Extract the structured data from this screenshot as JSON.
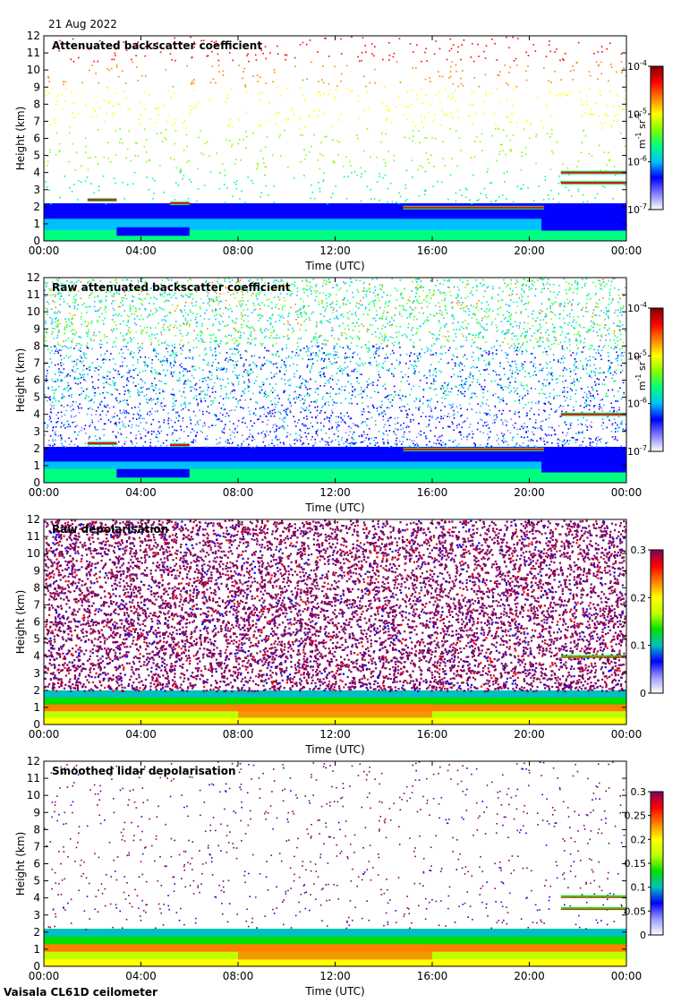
{
  "date": "21 Aug 2022",
  "footer": "Vaisala CL61D ceilometer",
  "colors": {
    "rainbow": [
      "#ffffff",
      "#8080ff",
      "#0000ff",
      "#00c0ff",
      "#00ff80",
      "#80ff00",
      "#ffff00",
      "#ff8000",
      "#ff0000",
      "#800000"
    ],
    "depol": [
      "#ffffff",
      "#9999ff",
      "#0000ff",
      "#00c0c0",
      "#00e000",
      "#c0ff00",
      "#ffff00",
      "#ff8000",
      "#ff0000",
      "#800060"
    ]
  },
  "chart_data": [
    {
      "type": "heatmap",
      "title": "Attenuated backscatter coefficient",
      "xlabel": "Time (UTC)",
      "ylabel": "Height (km)",
      "x_ticks": [
        "00:00",
        "04:00",
        "08:00",
        "12:00",
        "16:00",
        "20:00",
        "00:00"
      ],
      "y_ticks": [
        "0",
        "1",
        "2",
        "3",
        "4",
        "5",
        "6",
        "7",
        "8",
        "9",
        "10",
        "11",
        "12"
      ],
      "ylim": [
        0,
        12
      ],
      "colorbar": {
        "scale": "log",
        "range": [
          1e-07,
          0.0001
        ],
        "ticks": [
          {
            "base": "10",
            "exp": "-4"
          },
          {
            "base": "10",
            "exp": "-5"
          },
          {
            "base": "10",
            "exp": "-6"
          },
          {
            "base": "10",
            "exp": "-7"
          }
        ],
        "units": {
          "main1": "m",
          "exp1": "-1",
          "main2": " sr",
          "exp2": "-1"
        }
      },
      "features": {
        "boundary_layer_top_km": 2.2,
        "cloud_layers": [
          {
            "from_h": 1.8,
            "to_h": 3.0,
            "height_km": 2.4
          },
          {
            "from_h": 5.2,
            "to_h": 6.0,
            "height_km": 2.2
          },
          {
            "from_h": 14.8,
            "to_h": 20.6,
            "height_km": 1.95
          },
          {
            "from_h": 21.3,
            "to_h": 24.0,
            "height_km": 4.0
          },
          {
            "from_h": 21.3,
            "to_h": 24.0,
            "height_km": 3.4
          }
        ]
      }
    },
    {
      "type": "heatmap",
      "title": "Raw attenuated backscatter coefficient",
      "xlabel": "Time (UTC)",
      "ylabel": "Height (km)",
      "x_ticks": [
        "00:00",
        "04:00",
        "08:00",
        "12:00",
        "16:00",
        "20:00",
        "00:00"
      ],
      "y_ticks": [
        "0",
        "1",
        "2",
        "3",
        "4",
        "5",
        "6",
        "7",
        "8",
        "9",
        "10",
        "11",
        "12"
      ],
      "ylim": [
        0,
        12
      ],
      "colorbar": {
        "scale": "log",
        "range": [
          1e-07,
          0.0001
        ],
        "ticks": [
          {
            "base": "10",
            "exp": "-4"
          },
          {
            "base": "10",
            "exp": "-5"
          },
          {
            "base": "10",
            "exp": "-6"
          },
          {
            "base": "10",
            "exp": "-7"
          }
        ],
        "units": {
          "main1": "m",
          "exp1": "-1",
          "main2": " sr",
          "exp2": "-1"
        }
      },
      "features": {
        "boundary_layer_top_km": 2.1,
        "cloud_layers": [
          {
            "from_h": 1.8,
            "to_h": 3.0,
            "height_km": 2.3
          },
          {
            "from_h": 5.2,
            "to_h": 6.0,
            "height_km": 2.2
          },
          {
            "from_h": 14.8,
            "to_h": 20.6,
            "height_km": 1.95
          },
          {
            "from_h": 21.3,
            "to_h": 24.0,
            "height_km": 4.0
          }
        ]
      }
    },
    {
      "type": "heatmap",
      "title": "Raw depolarisation",
      "xlabel": "Time (UTC)",
      "ylabel": "Height (km)",
      "x_ticks": [
        "00:00",
        "04:00",
        "08:00",
        "12:00",
        "16:00",
        "20:00",
        "00:00"
      ],
      "y_ticks": [
        "0",
        "1",
        "2",
        "3",
        "4",
        "5",
        "6",
        "7",
        "8",
        "9",
        "10",
        "11",
        "12"
      ],
      "ylim": [
        0,
        12
      ],
      "colorbar": {
        "scale": "linear",
        "range": [
          0,
          0.3
        ],
        "ticks": [
          "0.3",
          "0.2",
          "0.1",
          "0"
        ]
      },
      "features": {
        "boundary_layer_top_km": 2.0,
        "cloud_layers": [
          {
            "from_h": 21.3,
            "to_h": 24.0,
            "height_km": 4.0
          }
        ]
      }
    },
    {
      "type": "heatmap",
      "title": "Smoothed lidar depolarisation",
      "xlabel": "Time (UTC)",
      "ylabel": "Height (km)",
      "x_ticks": [
        "00:00",
        "04:00",
        "08:00",
        "12:00",
        "16:00",
        "20:00",
        "00:00"
      ],
      "y_ticks": [
        "0",
        "1",
        "2",
        "3",
        "4",
        "5",
        "6",
        "7",
        "8",
        "9",
        "10",
        "11",
        "12"
      ],
      "ylim": [
        0,
        12
      ],
      "colorbar": {
        "scale": "linear",
        "range": [
          0,
          0.3
        ],
        "ticks": [
          "0.3",
          "0.25",
          "0.2",
          "0.15",
          "0.1",
          "0.05",
          "0"
        ]
      },
      "features": {
        "boundary_layer_top_km": 2.2,
        "cloud_layers": [
          {
            "from_h": 21.3,
            "to_h": 24.0,
            "height_km": 4.1
          },
          {
            "from_h": 21.3,
            "to_h": 24.0,
            "height_km": 3.4
          }
        ]
      }
    }
  ]
}
